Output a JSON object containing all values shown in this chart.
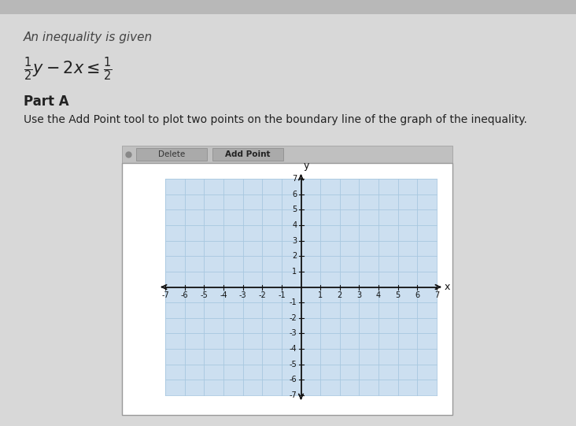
{
  "title_main": "An inequality is given",
  "inequality_text": "$\\frac{1}{2}y - 2x \\leq \\frac{1}{2}$",
  "part_label": "Part A",
  "part_text": "Use the Add Point tool to plot two points on the boundary line of the graph of the inequality.",
  "xmin": -7,
  "xmax": 7,
  "ymin": -7,
  "ymax": 7,
  "bg_color": "#ccdff0",
  "grid_color": "#a8c8e0",
  "axis_color": "#111111",
  "page_bg": "#c8c8c8",
  "content_bg": "#d5d5d5",
  "panel_bg": "#ffffff",
  "toolbar_bg": "#bbbbbb"
}
